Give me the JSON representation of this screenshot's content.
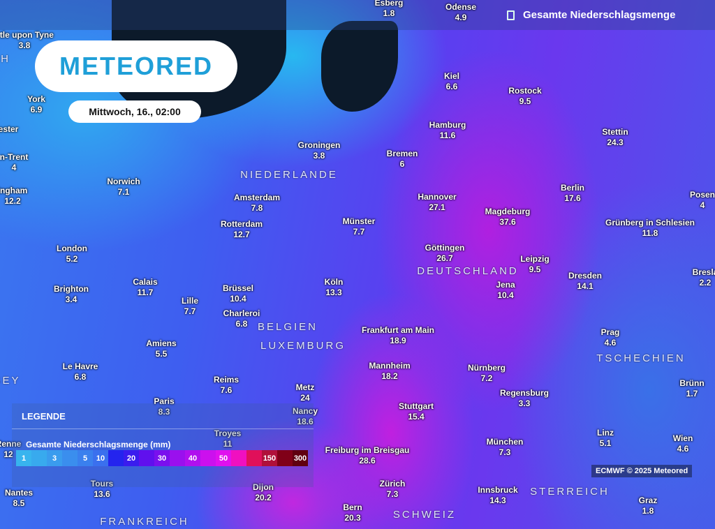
{
  "header": {
    "title": "Gesamte Niederschlagsmenge",
    "icon": "precip-icon"
  },
  "logo": "METEORED",
  "date": "Mittwoch, 16., 02:00",
  "legend": {
    "title": "LEGENDE",
    "subtitle": "Gesamte Niederschlagsmenge (mm)",
    "scale": [
      {
        "label": "1",
        "color": "#38b4ee"
      },
      {
        "label": "",
        "color": "#38aaee"
      },
      {
        "label": "3",
        "color": "#3a9cee"
      },
      {
        "label": "",
        "color": "#3a8eee"
      },
      {
        "label": "5",
        "color": "#3a80ee"
      },
      {
        "label": "10",
        "color": "#3a70ee"
      },
      {
        "label": "",
        "color": "#2424ee"
      },
      {
        "label": "20",
        "color": "#3a1cee"
      },
      {
        "label": "",
        "color": "#6010ee"
      },
      {
        "label": "30",
        "color": "#7a10ee"
      },
      {
        "label": "",
        "color": "#9a10ee"
      },
      {
        "label": "40",
        "color": "#b010ee"
      },
      {
        "label": "",
        "color": "#cc10ee"
      },
      {
        "label": "50",
        "color": "#e010ee"
      },
      {
        "label": "",
        "color": "#f010c0"
      },
      {
        "label": "",
        "color": "#e0105a"
      },
      {
        "label": "150",
        "color": "#b0103a"
      },
      {
        "label": "",
        "color": "#800018"
      },
      {
        "label": "300",
        "color": "#600010"
      }
    ]
  },
  "credit": "ECMWF © 2025 Meteored",
  "cities": [
    {
      "name": "Esberg",
      "value": "1.8"
    },
    {
      "name": "Odense",
      "value": "4.9"
    },
    {
      "name": "stle upon Tyne",
      "value": "3.8"
    },
    {
      "name": "York",
      "value": "6.9"
    },
    {
      "name": "ester",
      "value": ""
    },
    {
      "name": "n-Trent",
      "value": "4"
    },
    {
      "name": "ingham",
      "value": "12.2"
    },
    {
      "name": "Norwich",
      "value": "7.1"
    },
    {
      "name": "London",
      "value": "5.2"
    },
    {
      "name": "Brighton",
      "value": "3.4"
    },
    {
      "name": "Calais",
      "value": "11.7"
    },
    {
      "name": "Amsterdam",
      "value": "7.8"
    },
    {
      "name": "Rotterdam",
      "value": "12.7"
    },
    {
      "name": "Groningen",
      "value": "3.8"
    },
    {
      "name": "Bremen",
      "value": "6"
    },
    {
      "name": "Hamburg",
      "value": "11.6"
    },
    {
      "name": "Kiel",
      "value": "6.6"
    },
    {
      "name": "Rostock",
      "value": "9.5"
    },
    {
      "name": "Stettin",
      "value": "24.3"
    },
    {
      "name": "Berlin",
      "value": "17.6"
    },
    {
      "name": "Hannover",
      "value": "27.1"
    },
    {
      "name": "Magdeburg",
      "value": "37.6"
    },
    {
      "name": "Münster",
      "value": "7.7"
    },
    {
      "name": "Göttingen",
      "value": "26.7"
    },
    {
      "name": "Leipzig",
      "value": "9.5"
    },
    {
      "name": "Jena",
      "value": "10.4"
    },
    {
      "name": "Dresden",
      "value": "14.1"
    },
    {
      "name": "Köln",
      "value": "13.3"
    },
    {
      "name": "Brüssel",
      "value": "10.4"
    },
    {
      "name": "Lille",
      "value": "7.7"
    },
    {
      "name": "Charleroi",
      "value": "6.8"
    },
    {
      "name": "Frankfurt am Main",
      "value": "18.9"
    },
    {
      "name": "Amiens",
      "value": "5.5"
    },
    {
      "name": "Le Havre",
      "value": "6.8"
    },
    {
      "name": "Reims",
      "value": "7.6"
    },
    {
      "name": "Mannheim",
      "value": "18.2"
    },
    {
      "name": "Nürnberg",
      "value": "7.2"
    },
    {
      "name": "Regensburg",
      "value": "3.3"
    },
    {
      "name": "Prag",
      "value": "4.6"
    },
    {
      "name": "Metz",
      "value": "24"
    },
    {
      "name": "Nancy",
      "value": "18.6"
    },
    {
      "name": "Paris",
      "value": "8.3"
    },
    {
      "name": "Stuttgart",
      "value": "15.4"
    },
    {
      "name": "Troyes",
      "value": "11"
    },
    {
      "name": "Freiburg im Breisgau",
      "value": "28.6"
    },
    {
      "name": "München",
      "value": "7.3"
    },
    {
      "name": "Linz",
      "value": "5.1"
    },
    {
      "name": "Wien",
      "value": "4.6"
    },
    {
      "name": "Brünn",
      "value": "1.7"
    },
    {
      "name": "Posen",
      "value": "4"
    },
    {
      "name": "Bresla",
      "value": "2.2"
    },
    {
      "name": "Grünberg in Schlesien",
      "value": "11.8"
    },
    {
      "name": "Zürich",
      "value": "7.3"
    },
    {
      "name": "Innsbruck",
      "value": "14.3"
    },
    {
      "name": "Dijon",
      "value": "20.2"
    },
    {
      "name": "Tours",
      "value": "13.6"
    },
    {
      "name": "Nantes",
      "value": "8.5"
    },
    {
      "name": "Bern",
      "value": "20.3"
    },
    {
      "name": "Graz",
      "value": "1.8"
    },
    {
      "name": "Renne",
      "value": "12"
    }
  ],
  "countries": [
    "NIEDERLANDE",
    "DEUTSCHLAND",
    "BELGIEN",
    "LUXEMBURG",
    "TSCHECHIEN",
    "STERREICH",
    "SCHWEIZ",
    "FRANKREICH",
    "SEY",
    "H"
  ]
}
